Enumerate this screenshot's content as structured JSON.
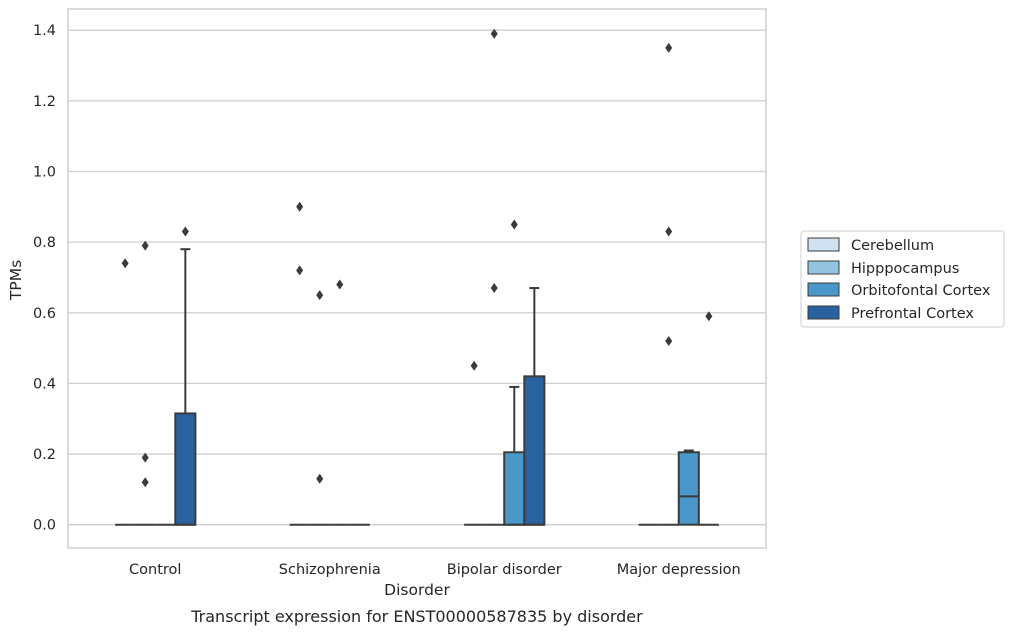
{
  "caption": "Transcript expression for ENST00000587835 by disorder",
  "colors": {
    "Cerebellum": "#d0e1f2",
    "Hipppocampus": "#94c4df",
    "Orbitofontal Cortex": "#4a98c9",
    "Prefrontal Cortex": "#2a62a0",
    "edge": "#3b3b3b",
    "grid": "#cfcfcf",
    "frame": "#cccccc"
  },
  "chart_data": {
    "type": "box",
    "xlabel": "Disorder",
    "ylabel": "TPMs",
    "ylim": [
      -0.066,
      1.46
    ],
    "yticks": [
      "0.0",
      "0.2",
      "0.4",
      "0.6",
      "0.8",
      "1.0",
      "1.2",
      "1.4"
    ],
    "grid": "horizontal",
    "categories": [
      "Control",
      "Schizophrenia",
      "Bipolar disorder",
      "Major depression"
    ],
    "legend": {
      "position": "right",
      "entries": [
        "Cerebellum",
        "Hipppocampus",
        "Orbitofontal Cortex",
        "Prefrontal Cortex"
      ]
    },
    "series": [
      {
        "name": "Cerebellum",
        "boxes": [
          {
            "q1": 0,
            "median": 0,
            "q3": 0,
            "whisker_low": 0,
            "whisker_high": 0,
            "outliers": [
              0.74
            ]
          },
          {
            "q1": 0,
            "median": 0,
            "q3": 0,
            "whisker_low": 0,
            "whisker_high": 0,
            "outliers": [
              0.9,
              0.72
            ]
          },
          {
            "q1": 0,
            "median": 0,
            "q3": 0,
            "whisker_low": 0,
            "whisker_high": 0,
            "outliers": [
              0.45
            ]
          },
          {
            "q1": 0,
            "median": 0,
            "q3": 0,
            "whisker_low": 0,
            "whisker_high": 0,
            "outliers": []
          }
        ]
      },
      {
        "name": "Hipppocampus",
        "boxes": [
          {
            "q1": 0,
            "median": 0,
            "q3": 0,
            "whisker_low": 0,
            "whisker_high": 0,
            "outliers": [
              0.79,
              0.19,
              0.12
            ]
          },
          {
            "q1": 0,
            "median": 0,
            "q3": 0,
            "whisker_low": 0,
            "whisker_high": 0,
            "outliers": [
              0.65,
              0.13
            ]
          },
          {
            "q1": 0,
            "median": 0,
            "q3": 0,
            "whisker_low": 0,
            "whisker_high": 0,
            "outliers": [
              1.39,
              0.67
            ]
          },
          {
            "q1": 0,
            "median": 0,
            "q3": 0,
            "whisker_low": 0,
            "whisker_high": 0,
            "outliers": [
              1.35,
              0.83,
              0.52
            ]
          }
        ]
      },
      {
        "name": "Orbitofontal Cortex",
        "boxes": [
          {
            "q1": 0,
            "median": 0,
            "q3": 0,
            "whisker_low": 0,
            "whisker_high": 0,
            "outliers": []
          },
          {
            "q1": 0,
            "median": 0,
            "q3": 0,
            "whisker_low": 0,
            "whisker_high": 0,
            "outliers": [
              0.68
            ]
          },
          {
            "q1": 0,
            "median": 0,
            "q3": 0.205,
            "whisker_low": 0,
            "whisker_high": 0.39,
            "outliers": [
              0.85
            ]
          },
          {
            "q1": 0,
            "median": 0.08,
            "q3": 0.205,
            "whisker_low": 0,
            "whisker_high": 0.21,
            "outliers": []
          }
        ]
      },
      {
        "name": "Prefrontal Cortex",
        "boxes": [
          {
            "q1": 0,
            "median": 0,
            "q3": 0.315,
            "whisker_low": 0,
            "whisker_high": 0.78,
            "outliers": [
              0.83
            ]
          },
          {
            "q1": 0,
            "median": 0,
            "q3": 0,
            "whisker_low": 0,
            "whisker_high": 0,
            "outliers": []
          },
          {
            "q1": 0,
            "median": 0,
            "q3": 0.42,
            "whisker_low": 0,
            "whisker_high": 0.67,
            "outliers": []
          },
          {
            "q1": 0,
            "median": 0,
            "q3": 0,
            "whisker_low": 0,
            "whisker_high": 0,
            "outliers": [
              0.59
            ]
          }
        ]
      }
    ]
  }
}
